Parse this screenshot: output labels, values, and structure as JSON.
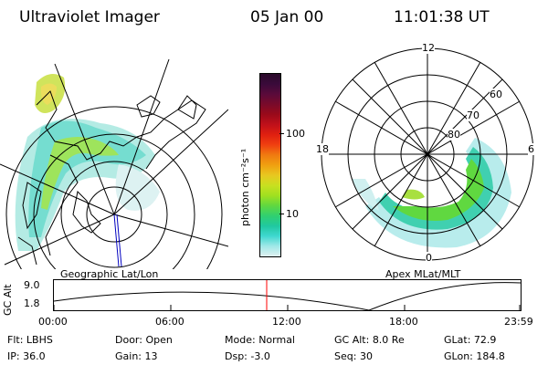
{
  "header": {
    "instrument": "Ultraviolet Imager",
    "date": "05 Jan 00",
    "time": "11:01:38 UT"
  },
  "colorbar": {
    "unit_label": "photon cm⁻²s⁻¹",
    "ticks": [
      "100",
      "10"
    ],
    "colors": [
      "#2a0a2a",
      "#3a0a3a",
      "#5a0a3a",
      "#7a0a2a",
      "#9a0a1a",
      "#c0101a",
      "#e02010",
      "#f04010",
      "#f07a10",
      "#f0a010",
      "#e8c820",
      "#c8e020",
      "#a0e020",
      "#60d840",
      "#30d070",
      "#20c8a0",
      "#40d8d0",
      "#a0e8e8",
      "#e0f0f0"
    ]
  },
  "left_map": {
    "label": "Geographic Lat/Lon"
  },
  "right_map": {
    "label": "Apex  MLat/MLT",
    "mlt_labels": {
      "top": "12",
      "left": "18",
      "right": "6",
      "bottom": "0"
    },
    "lat_labels": [
      "60",
      "70",
      "80"
    ]
  },
  "orbit_plot": {
    "ylabel": "GC Alt",
    "yticks": [
      "9.0",
      "1.8"
    ],
    "xticks": [
      "00:00",
      "06:00",
      "12:00",
      "18:00",
      "23:59"
    ],
    "current_time_marker": "11:01:38",
    "marker_color": "#ff0000"
  },
  "footer": {
    "row1": [
      {
        "label": "Flt:",
        "value": "LBHS"
      },
      {
        "label": "Door:",
        "value": "Open"
      },
      {
        "label": "Mode:",
        "value": "Normal"
      },
      {
        "label": "GC Alt:",
        "value": "8.0 Re"
      },
      {
        "label": "GLat:",
        "value": "72.9"
      }
    ],
    "row2": [
      {
        "label": "IP:",
        "value": "36.0"
      },
      {
        "label": "Gain:",
        "value": "13"
      },
      {
        "label": "Dsp:",
        "value": "-3.0"
      },
      {
        "label": "Seq:",
        "value": "30"
      },
      {
        "label": "GLon:",
        "value": "184.8"
      }
    ]
  }
}
